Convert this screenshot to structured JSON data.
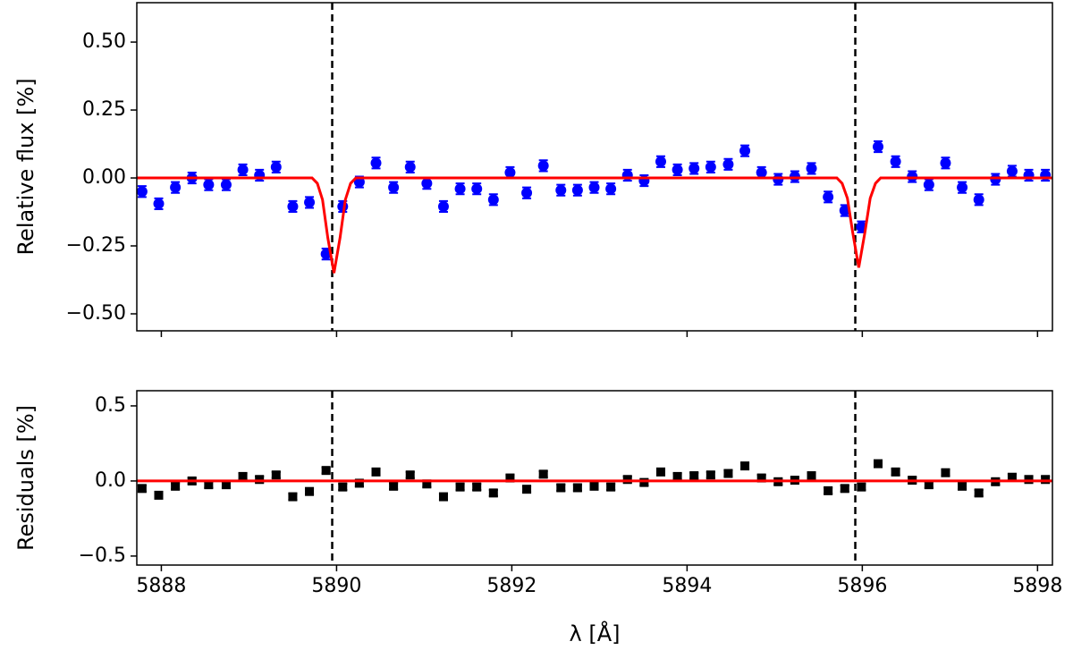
{
  "chart_data": [
    {
      "type": "errorbar",
      "ylabel": "Relative flux [%]",
      "xlim": [
        5887.72,
        5898.17
      ],
      "ylim": [
        -0.5625,
        0.645
      ],
      "xticks": [
        5888,
        5890,
        5892,
        5894,
        5896,
        5898
      ],
      "show_xtick_labels": false,
      "yticks": [
        {
          "value": 0.5,
          "label": "0.50"
        },
        {
          "value": 0.25,
          "label": "0.25"
        },
        {
          "value": 0,
          "label": "0.00"
        },
        {
          "value": -0.25,
          "label": "−0.25"
        },
        {
          "value": -0.5,
          "label": "−0.50"
        }
      ],
      "vlines": [
        5889.95,
        5895.92
      ],
      "series": [
        {
          "style": "points",
          "marker": "circle",
          "color": "#0000ff",
          "yerr": 0.02,
          "x": [
            5887.78,
            5887.97,
            5888.16,
            5888.35,
            5888.54,
            5888.74,
            5888.93,
            5889.12,
            5889.31,
            5889.5,
            5889.69,
            5889.88,
            5890.07,
            5890.26,
            5890.45,
            5890.65,
            5890.84,
            5891.03,
            5891.22,
            5891.41,
            5891.6,
            5891.79,
            5891.98,
            5892.17,
            5892.36,
            5892.56,
            5892.75,
            5892.94,
            5893.13,
            5893.32,
            5893.51,
            5893.7,
            5893.89,
            5894.08,
            5894.27,
            5894.47,
            5894.66,
            5894.85,
            5895.04,
            5895.23,
            5895.42,
            5895.61,
            5895.8,
            5895.99,
            5896.18,
            5896.38,
            5896.57,
            5896.76,
            5896.95,
            5897.14,
            5897.33,
            5897.52,
            5897.71,
            5897.9,
            5898.09
          ],
          "values": [
            -0.05,
            -0.095,
            -0.035,
            0.0,
            -0.025,
            -0.025,
            0.03,
            0.01,
            0.04,
            -0.105,
            -0.09,
            -0.28,
            -0.105,
            -0.015,
            0.055,
            -0.035,
            0.04,
            -0.02,
            -0.105,
            -0.04,
            -0.04,
            -0.08,
            0.02,
            -0.055,
            0.045,
            -0.045,
            -0.045,
            -0.035,
            -0.04,
            0.01,
            -0.01,
            0.06,
            0.03,
            0.035,
            0.04,
            0.05,
            0.1,
            0.02,
            -0.005,
            0.005,
            0.035,
            -0.07,
            -0.12,
            -0.18,
            0.115,
            0.06,
            0.005,
            -0.025,
            0.055,
            -0.035,
            -0.08,
            -0.005,
            0.025,
            0.01,
            0.01
          ]
        },
        {
          "style": "line",
          "color": "#ff0000",
          "x": [
            5887.72,
            5889.72,
            5889.78,
            5889.84,
            5889.9,
            5889.97,
            5890.04,
            5890.1,
            5890.16,
            5890.22,
            5895.71,
            5895.77,
            5895.83,
            5895.89,
            5895.96,
            5896.03,
            5896.09,
            5896.15,
            5896.21,
            5898.17
          ],
          "values": [
            0,
            0,
            -0.02,
            -0.08,
            -0.22,
            -0.35,
            -0.22,
            -0.08,
            -0.02,
            0,
            0,
            -0.02,
            -0.075,
            -0.2,
            -0.33,
            -0.2,
            -0.075,
            -0.02,
            0,
            0
          ]
        }
      ]
    },
    {
      "type": "errorbar",
      "ylabel": "Residuals [%]",
      "xlabel": "λ [Å]",
      "xlim": [
        5887.72,
        5898.17
      ],
      "ylim": [
        -0.56,
        0.601
      ],
      "xticks": [
        5888,
        5890,
        5892,
        5894,
        5896,
        5898
      ],
      "show_xtick_labels": true,
      "yticks": [
        {
          "value": 0.5,
          "label": "0.5"
        },
        {
          "value": 0,
          "label": "0.0"
        },
        {
          "value": -0.5,
          "label": "−0.5"
        }
      ],
      "vlines": [
        5889.95,
        5895.92
      ],
      "series": [
        {
          "style": "points",
          "marker": "square",
          "color": "#000000",
          "yerr": 0.02,
          "x": [
            5887.78,
            5887.97,
            5888.16,
            5888.35,
            5888.54,
            5888.74,
            5888.93,
            5889.12,
            5889.31,
            5889.5,
            5889.69,
            5889.88,
            5890.07,
            5890.26,
            5890.45,
            5890.65,
            5890.84,
            5891.03,
            5891.22,
            5891.41,
            5891.6,
            5891.79,
            5891.98,
            5892.17,
            5892.36,
            5892.56,
            5892.75,
            5892.94,
            5893.13,
            5893.32,
            5893.51,
            5893.7,
            5893.89,
            5894.08,
            5894.27,
            5894.47,
            5894.66,
            5894.85,
            5895.04,
            5895.23,
            5895.42,
            5895.61,
            5895.8,
            5895.99,
            5896.18,
            5896.38,
            5896.57,
            5896.76,
            5896.95,
            5897.14,
            5897.33,
            5897.52,
            5897.71,
            5897.9,
            5898.09
          ],
          "values": [
            -0.05,
            -0.095,
            -0.035,
            0.0,
            -0.025,
            -0.025,
            0.03,
            0.01,
            0.04,
            -0.105,
            -0.07,
            0.07,
            -0.04,
            -0.015,
            0.06,
            -0.035,
            0.04,
            -0.02,
            -0.105,
            -0.04,
            -0.04,
            -0.08,
            0.02,
            -0.055,
            0.045,
            -0.045,
            -0.045,
            -0.035,
            -0.04,
            0.01,
            -0.01,
            0.06,
            0.03,
            0.035,
            0.04,
            0.05,
            0.1,
            0.02,
            -0.005,
            0.005,
            0.035,
            -0.065,
            -0.05,
            -0.04,
            0.115,
            0.06,
            0.005,
            -0.025,
            0.055,
            -0.035,
            -0.08,
            -0.005,
            0.025,
            0.01,
            0.01
          ]
        },
        {
          "style": "line",
          "color": "#ff0000",
          "x": [
            5887.72,
            5898.17
          ],
          "values": [
            0,
            0
          ]
        }
      ]
    }
  ]
}
